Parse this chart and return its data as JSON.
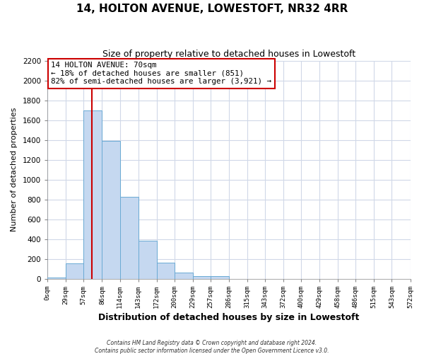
{
  "title": "14, HOLTON AVENUE, LOWESTOFT, NR32 4RR",
  "subtitle": "Size of property relative to detached houses in Lowestoft",
  "xlabel": "Distribution of detached houses by size in Lowestoft",
  "ylabel": "Number of detached properties",
  "bar_edges": [
    0,
    29,
    57,
    86,
    114,
    143,
    172,
    200,
    229,
    257,
    286,
    315,
    343,
    372,
    400,
    429,
    458,
    486,
    515,
    543,
    572
  ],
  "bar_heights": [
    15,
    155,
    1700,
    1390,
    825,
    385,
    160,
    65,
    30,
    25,
    0,
    0,
    0,
    0,
    0,
    0,
    0,
    0,
    0,
    0
  ],
  "bar_color": "#c5d8f0",
  "bar_edgecolor": "#6aaad4",
  "tick_labels": [
    "0sqm",
    "29sqm",
    "57sqm",
    "86sqm",
    "114sqm",
    "143sqm",
    "172sqm",
    "200sqm",
    "229sqm",
    "257sqm",
    "286sqm",
    "315sqm",
    "343sqm",
    "372sqm",
    "400sqm",
    "429sqm",
    "458sqm",
    "486sqm",
    "515sqm",
    "543sqm",
    "572sqm"
  ],
  "ylim": [
    0,
    2200
  ],
  "yticks": [
    0,
    200,
    400,
    600,
    800,
    1000,
    1200,
    1400,
    1600,
    1800,
    2000,
    2200
  ],
  "property_line_x": 70,
  "annotation_title": "14 HOLTON AVENUE: 70sqm",
  "annotation_line1": "← 18% of detached houses are smaller (851)",
  "annotation_line2": "82% of semi-detached houses are larger (3,921) →",
  "box_facecolor": "#ffffff",
  "box_edgecolor": "#cc0000",
  "vline_color": "#cc0000",
  "plot_bg_color": "#ffffff",
  "fig_bg_color": "#ffffff",
  "grid_color": "#d0d8e8",
  "footer1": "Contains HM Land Registry data © Crown copyright and database right 2024.",
  "footer2": "Contains public sector information licensed under the Open Government Licence v3.0."
}
